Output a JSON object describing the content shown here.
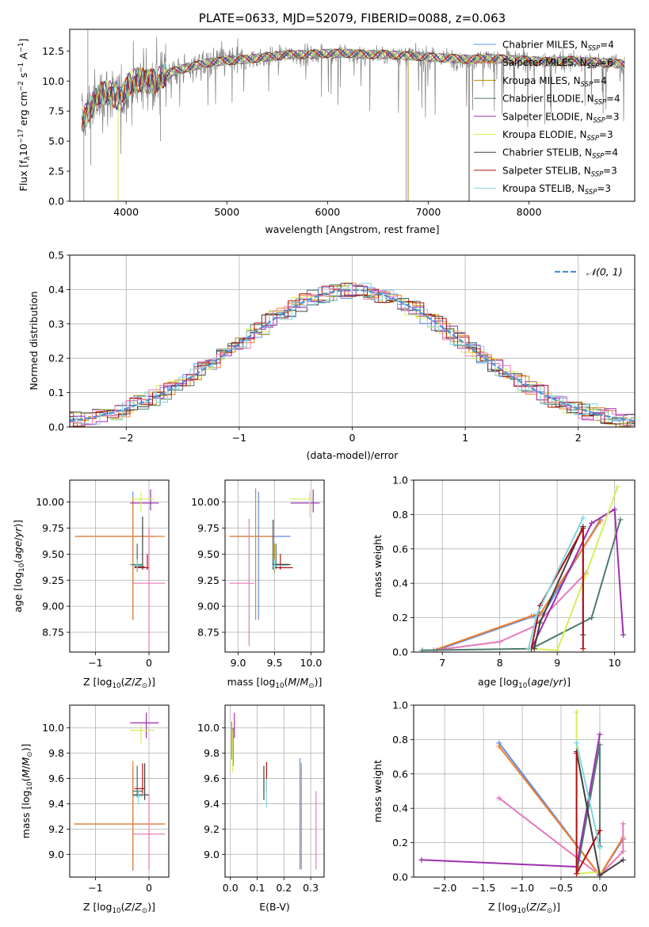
{
  "colors": {
    "Chabrier MILES": "#5b8def",
    "Salpeter MILES": "#f07f2a",
    "Kroupa MILES": "#b88b00",
    "Chabrier ELODIE": "#4e7a6f",
    "Salpeter ELODIE": "#9b2fae",
    "Kroupa ELODIE": "#d6ee5a",
    "Chabrier STELIB": "#404040",
    "Salpeter STELIB": "#b01010",
    "Kroupa STELIB": "#7fd6df",
    "pink": "#e879b8",
    "data": "#808080"
  },
  "chart_data": [
    {
      "id": "spectrum",
      "type": "line",
      "title": "PLATE=0633, MJD=52079, FIBERID=0088, z=0.063",
      "xlabel": "wavelength [Angstrom, rest frame]",
      "ylabel_parts": [
        "Flux [f",
        "λ",
        "10",
        "−17",
        " erg cm",
        "−2",
        " s",
        "−1",
        " A",
        "−1",
        "]"
      ],
      "xlim": [
        3440,
        9050
      ],
      "ylim": [
        0,
        14.3
      ],
      "xticks": [
        4000,
        5000,
        6000,
        7000,
        8000
      ],
      "yticks": [
        0.0,
        2.5,
        5.0,
        7.5,
        10.0,
        12.5
      ],
      "ytick_labels": [
        "0.0",
        "2.5",
        "5.0",
        "7.5",
        "10.0",
        "12.5"
      ],
      "continuum": [
        [
          3550,
          6.5
        ],
        [
          3650,
          8.0
        ],
        [
          3750,
          8.8
        ],
        [
          3850,
          9.0
        ],
        [
          3950,
          8.6
        ],
        [
          4050,
          9.8
        ],
        [
          4150,
          10.2
        ],
        [
          4300,
          9.9
        ],
        [
          4400,
          10.6
        ],
        [
          4600,
          11.1
        ],
        [
          4800,
          11.5
        ],
        [
          5000,
          11.7
        ],
        [
          5200,
          11.8
        ],
        [
          5400,
          12.0
        ],
        [
          5600,
          12.2
        ],
        [
          5800,
          12.2
        ],
        [
          6000,
          12.3
        ],
        [
          6200,
          12.3
        ],
        [
          6400,
          12.2
        ],
        [
          6600,
          12.2
        ],
        [
          6800,
          12.1
        ],
        [
          7000,
          12.0
        ],
        [
          7200,
          11.9
        ],
        [
          7400,
          11.8
        ],
        [
          7600,
          11.9
        ],
        [
          7800,
          11.8
        ],
        [
          8000,
          11.7
        ],
        [
          8200,
          11.6
        ],
        [
          8400,
          11.7
        ],
        [
          8600,
          11.6
        ],
        [
          8800,
          11.5
        ],
        [
          8950,
          11.4
        ]
      ],
      "series": [
        {
          "label": "Chabrier MILES",
          "sub": "SSP",
          "n": "4"
        },
        {
          "label": "Salpeter MILES",
          "sub": "SSP",
          "n": "6"
        },
        {
          "label": "Kroupa MILES",
          "sub": "SSP",
          "n": "4"
        },
        {
          "label": "Chabrier ELODIE",
          "sub": "SSP",
          "n": "4"
        },
        {
          "label": "Salpeter ELODIE",
          "sub": "SSP",
          "n": "3"
        },
        {
          "label": "Kroupa ELODIE",
          "sub": "SSP",
          "n": "3"
        },
        {
          "label": "Chabrier STELIB",
          "sub": "SSP",
          "n": "4"
        },
        {
          "label": "Salpeter STELIB",
          "sub": "SSP",
          "n": "3"
        },
        {
          "label": "Kroupa STELIB",
          "sub": "SSP",
          "n": "3"
        }
      ]
    },
    {
      "id": "residuals",
      "type": "line",
      "xlabel": "(data-model)/error",
      "ylabel": "Normed distribution",
      "xlim": [
        -2.5,
        2.5
      ],
      "ylim": [
        0,
        0.5
      ],
      "xticks": [
        -2,
        -1,
        0,
        1,
        2
      ],
      "xtick_labels": [
        "−2",
        "−1",
        "0",
        "1",
        "2"
      ],
      "yticks": [
        0.0,
        0.1,
        0.2,
        0.3,
        0.4,
        0.5
      ],
      "ytick_labels": [
        "0.0",
        "0.1",
        "0.2",
        "0.3",
        "0.4",
        "0.5"
      ],
      "grid": true,
      "legend": "top-right",
      "normal_label": "𝒩(0, 1)"
    },
    {
      "id": "age-vs-Z",
      "type": "scatter",
      "xlabel": "Z [log10(Z/Z⊙)]",
      "ylabel": "age [log10(age/yr)]",
      "xlim": [
        -1.48,
        0.37
      ],
      "ylim": [
        8.56,
        10.21
      ],
      "xticks": [
        -1,
        0
      ],
      "xtick_labels": [
        "−1",
        "0"
      ],
      "yticks": [
        8.75,
        9.0,
        9.25,
        9.5,
        9.75,
        10.0
      ],
      "ytick_labels": [
        "8.75",
        "9.00",
        "9.25",
        "9.50",
        "9.75",
        "10.00"
      ],
      "points": [
        {
          "s": "Chabrier MILES",
          "x": -0.3,
          "xl": -1.38,
          "xh": 0.15,
          "y": 9.67,
          "yl": 8.87,
          "yh": 10.1
        },
        {
          "s": "Salpeter MILES",
          "x": -0.3,
          "xl": -1.38,
          "xh": 0.3,
          "y": 9.67,
          "yl": 8.87,
          "yh": 10.04
        },
        {
          "s": "Kroupa MILES",
          "x": -0.22,
          "xl": -0.32,
          "xh": -0.12,
          "y": 9.4,
          "yl": 9.33,
          "yh": 9.6
        },
        {
          "s": "Chabrier ELODIE",
          "x": -0.22,
          "xl": -0.35,
          "xh": -0.12,
          "y": 9.4,
          "yl": 9.36,
          "yh": 9.6
        },
        {
          "s": "Salpeter ELODIE",
          "x": 0.03,
          "xl": -0.35,
          "xh": 0.18,
          "y": 9.99,
          "yl": 9.92,
          "yh": 10.12
        },
        {
          "s": "Kroupa ELODIE",
          "x": -0.15,
          "xl": -0.32,
          "xh": 0.1,
          "y": 10.03,
          "yl": 9.9,
          "yh": 10.1
        },
        {
          "s": "Chabrier STELIB",
          "x": -0.12,
          "xl": -0.27,
          "xh": -0.08,
          "y": 9.38,
          "yl": 9.35,
          "yh": 9.86
        },
        {
          "s": "Salpeter STELIB",
          "x": -0.03,
          "xl": -0.27,
          "xh": 0.0,
          "y": 9.37,
          "yl": 9.35,
          "yh": 9.5
        },
        {
          "s": "Kroupa STELIB",
          "x": -0.22,
          "xl": -0.3,
          "xh": -0.12,
          "y": 9.39,
          "yl": 9.35,
          "yh": 9.45
        },
        {
          "s": "pink",
          "x": 0.0,
          "xl": -0.3,
          "xh": 0.3,
          "y": 9.22,
          "yl": 8.56,
          "yh": 9.75
        }
      ]
    },
    {
      "id": "age-vs-mass",
      "type": "scatter",
      "xlabel": "mass [log10(M/M⊙)]",
      "xlim": [
        8.82,
        10.18
      ],
      "ylim": [
        8.56,
        10.21
      ],
      "xticks": [
        9.0,
        9.5,
        10.0
      ],
      "xtick_labels": [
        "9.0",
        "9.5",
        "10.0"
      ],
      "yticks": [
        8.75,
        9.0,
        9.25,
        9.5,
        9.75,
        10.0
      ],
      "ytick_labels": [
        "8.75",
        "9.00",
        "9.25",
        "9.50",
        "9.75",
        "10.00"
      ],
      "points": [
        {
          "s": "Chabrier MILES",
          "x": 9.28,
          "xl": 8.88,
          "xh": 9.72,
          "y": 9.67,
          "yl": 8.87,
          "yh": 10.1
        },
        {
          "s": "Salpeter MILES",
          "x": 9.24,
          "xl": 8.88,
          "xh": 9.5,
          "y": 9.67,
          "yl": 8.87,
          "yh": 10.13
        },
        {
          "s": "Kroupa MILES",
          "x": 9.5,
          "xl": 9.47,
          "xh": 9.7,
          "y": 9.4,
          "yl": 9.33,
          "yh": 9.6
        },
        {
          "s": "Chabrier ELODIE",
          "x": 9.52,
          "xl": 9.47,
          "xh": 9.7,
          "y": 9.4,
          "yl": 9.36,
          "yh": 9.6
        },
        {
          "s": "Salpeter ELODIE",
          "x": 10.03,
          "xl": 9.72,
          "xh": 10.12,
          "y": 9.99,
          "yl": 9.9,
          "yh": 10.12
        },
        {
          "s": "Kroupa ELODIE",
          "x": 9.98,
          "xl": 9.7,
          "xh": 10.02,
          "y": 10.03,
          "yl": 9.85,
          "yh": 10.1
        },
        {
          "s": "Chabrier STELIB",
          "x": 9.48,
          "xl": 9.47,
          "xh": 9.72,
          "y": 9.4,
          "yl": 9.35,
          "yh": 9.83
        },
        {
          "s": "Salpeter STELIB",
          "x": 9.58,
          "xl": 9.5,
          "xh": 9.75,
          "y": 9.37,
          "yl": 9.35,
          "yh": 9.5
        },
        {
          "s": "Kroupa STELIB",
          "x": 9.5,
          "xl": 9.47,
          "xh": 9.68,
          "y": 9.39,
          "yl": 9.35,
          "yh": 9.45
        },
        {
          "s": "pink",
          "x": 9.15,
          "xl": 8.88,
          "xh": 9.22,
          "y": 9.22,
          "yl": 8.62,
          "yh": 9.84
        }
      ]
    },
    {
      "id": "weight-vs-age",
      "type": "line",
      "xlabel": "age [log10(age/yr)]",
      "ylabel": "mass weight",
      "xlim": [
        6.5,
        10.35
      ],
      "ylim": [
        0,
        1.0
      ],
      "xticks": [
        7,
        8,
        9,
        10
      ],
      "xtick_labels": [
        "7",
        "8",
        "9",
        "10"
      ],
      "yticks": [
        0.0,
        0.2,
        0.4,
        0.6,
        0.8,
        1.0
      ],
      "ytick_labels": [
        "0.0",
        "0.2",
        "0.4",
        "0.6",
        "0.8",
        "1.0"
      ],
      "grid": true,
      "series": [
        {
          "s": "Chabrier MILES",
          "x": [
            6.9,
            8.6,
            8.75,
            9.75
          ],
          "y": [
            0.01,
            0.21,
            0.22,
            0.77
          ]
        },
        {
          "s": "Salpeter MILES",
          "x": [
            6.85,
            8.55,
            8.7,
            9.75
          ],
          "y": [
            0.01,
            0.21,
            0.22,
            0.76
          ]
        },
        {
          "s": "pink",
          "x": [
            6.85,
            8.0,
            8.6,
            9.5
          ],
          "y": [
            0.01,
            0.06,
            0.15,
            0.46
          ]
        },
        {
          "s": "Chabrier ELODIE",
          "x": [
            6.65,
            8.55,
            9.6,
            10.1
          ],
          "y": [
            0.01,
            0.02,
            0.2,
            0.77
          ]
        },
        {
          "s": "Salpeter ELODIE",
          "x": [
            8.55,
            9.6,
            10.0,
            10.15
          ],
          "y": [
            0.02,
            0.75,
            0.83,
            0.1
          ]
        },
        {
          "s": "Kroupa ELODIE",
          "x": [
            8.55,
            9.0,
            9.5,
            10.05
          ],
          "y": [
            0.02,
            0.01,
            0.45,
            0.96
          ]
        },
        {
          "s": "Chabrier STELIB",
          "x": [
            8.6,
            8.7,
            9.45,
            9.45
          ],
          "y": [
            0.02,
            0.17,
            0.73,
            0.1
          ]
        },
        {
          "s": "Salpeter STELIB",
          "x": [
            8.55,
            8.7,
            9.45,
            9.45
          ],
          "y": [
            0.02,
            0.27,
            0.72,
            0.02
          ]
        },
        {
          "s": "Kroupa STELIB",
          "x": [
            8.5,
            8.65,
            9.45
          ],
          "y": [
            0.02,
            0.22,
            0.78
          ]
        }
      ]
    },
    {
      "id": "mass-vs-Z",
      "type": "scatter",
      "xlabel": "Z [log10(Z/Z⊙)]",
      "ylabel": "mass [log10(M/M⊙)]",
      "xlim": [
        -1.48,
        0.37
      ],
      "ylim": [
        8.82,
        10.18
      ],
      "xticks": [
        -1,
        0
      ],
      "xtick_labels": [
        "−1",
        "0"
      ],
      "yticks": [
        9.0,
        9.2,
        9.4,
        9.6,
        9.8,
        10.0
      ],
      "ytick_labels": [
        "9.0",
        "9.2",
        "9.4",
        "9.6",
        "9.8",
        "10.0"
      ],
      "points": [
        {
          "s": "Chabrier MILES",
          "x": -0.3,
          "xl": -1.4,
          "xh": 0.3,
          "y": 9.24,
          "yl": 8.87,
          "yh": 9.7
        },
        {
          "s": "Salpeter MILES",
          "x": -0.3,
          "xl": -1.4,
          "xh": 0.3,
          "y": 9.24,
          "yl": 8.88,
          "yh": 9.74
        },
        {
          "s": "Kroupa MILES",
          "x": -0.22,
          "xl": -0.3,
          "xh": -0.12,
          "y": 9.5,
          "yl": 9.45,
          "yh": 9.7
        },
        {
          "s": "Chabrier ELODIE",
          "x": -0.22,
          "xl": -0.3,
          "xh": -0.12,
          "y": 9.5,
          "yl": 9.45,
          "yh": 9.7
        },
        {
          "s": "Salpeter ELODIE",
          "x": -0.05,
          "xl": -0.35,
          "xh": 0.18,
          "y": 10.04,
          "yl": 9.92,
          "yh": 10.12
        },
        {
          "s": "Kroupa ELODIE",
          "x": -0.15,
          "xl": -0.35,
          "xh": 0.1,
          "y": 9.98,
          "yl": 9.88,
          "yh": 10.02
        },
        {
          "s": "Chabrier STELIB",
          "x": -0.08,
          "xl": -0.3,
          "xh": 0.0,
          "y": 9.47,
          "yl": 9.43,
          "yh": 9.72
        },
        {
          "s": "Salpeter STELIB",
          "x": -0.12,
          "xl": -0.27,
          "xh": -0.08,
          "y": 9.52,
          "yl": 9.48,
          "yh": 9.72
        },
        {
          "s": "Kroupa STELIB",
          "x": -0.2,
          "xl": -0.3,
          "xh": -0.12,
          "y": 9.46,
          "yl": 9.4,
          "yh": 9.5
        },
        {
          "s": "pink",
          "x": 0.0,
          "xl": -0.3,
          "xh": 0.3,
          "y": 9.16,
          "yl": 8.88,
          "yh": 9.48
        }
      ]
    },
    {
      "id": "mass-vs-ebv",
      "type": "scatter",
      "xlabel": "E(B-V)",
      "xlim": [
        -0.02,
        0.35
      ],
      "ylim": [
        8.82,
        10.18
      ],
      "xticks": [
        0.0,
        0.1,
        0.2,
        0.3
      ],
      "xtick_labels": [
        "0.0",
        "0.1",
        "0.2",
        "0.3"
      ],
      "yticks": [
        9.0,
        9.2,
        9.4,
        9.6,
        9.8,
        10.0
      ],
      "ytick_labels": [
        "9.0",
        "9.2",
        "9.4",
        "9.6",
        "9.8",
        "10.0"
      ],
      "points": [
        {
          "s": "Chabrier MILES",
          "x": 0.26,
          "y": 9.32,
          "yl": 8.88,
          "yh": 9.76
        },
        {
          "s": "Salpeter MILES",
          "x": 0.265,
          "y": 9.3,
          "yl": 8.88,
          "yh": 9.72
        },
        {
          "s": "Kroupa MILES",
          "x": 0.005,
          "y": 9.9,
          "yl": 9.75,
          "yh": 10.05
        },
        {
          "s": "Chabrier ELODIE",
          "x": 0.01,
          "y": 9.85,
          "yl": 9.7,
          "yh": 10.0
        },
        {
          "s": "Salpeter ELODIE",
          "x": 0.015,
          "y": 10.03,
          "yl": 9.92,
          "yh": 10.12
        },
        {
          "s": "Kroupa ELODIE",
          "x": 0.008,
          "y": 9.85,
          "yl": 9.65,
          "yh": 9.98
        },
        {
          "s": "Chabrier STELIB",
          "x": 0.125,
          "y": 9.55,
          "yl": 9.43,
          "yh": 9.7
        },
        {
          "s": "Salpeter STELIB",
          "x": 0.135,
          "y": 9.6,
          "yl": 9.5,
          "yh": 9.73
        },
        {
          "s": "Kroupa STELIB",
          "x": 0.135,
          "y": 9.48,
          "yl": 9.37,
          "yh": 9.6
        },
        {
          "s": "pink",
          "x": 0.32,
          "y": 9.2,
          "yl": 8.88,
          "yh": 9.5
        }
      ]
    },
    {
      "id": "weight-vs-Z",
      "type": "line",
      "xlabel": "Z [log10(Z/Z⊙)]",
      "ylabel": "mass weight",
      "xlim": [
        -2.4,
        0.45
      ],
      "ylim": [
        0,
        1.0
      ],
      "xticks": [
        -2.0,
        -1.5,
        -1.0,
        -0.5,
        0.0
      ],
      "xtick_labels": [
        "−2.0",
        "−1.5",
        "−1.0",
        "−0.5",
        "0.0"
      ],
      "yticks": [
        0.0,
        0.2,
        0.4,
        0.6,
        0.8,
        1.0
      ],
      "ytick_labels": [
        "0.0",
        "0.2",
        "0.4",
        "0.6",
        "0.8",
        "1.0"
      ],
      "grid": true,
      "series": [
        {
          "s": "Chabrier MILES",
          "x": [
            -1.3,
            0.0,
            0.3
          ],
          "y": [
            0.78,
            0.01,
            0.22
          ]
        },
        {
          "s": "Salpeter MILES",
          "x": [
            -1.3,
            0.0,
            0.3
          ],
          "y": [
            0.76,
            0.01,
            0.23
          ]
        },
        {
          "s": "pink",
          "x": [
            -1.3,
            0.0,
            0.3,
            0.3
          ],
          "y": [
            0.46,
            0.01,
            0.15,
            0.31
          ]
        },
        {
          "s": "Chabrier ELODIE",
          "x": [
            -0.3,
            0.0,
            0.0
          ],
          "y": [
            0.02,
            0.77,
            0.18
          ]
        },
        {
          "s": "Salpeter ELODIE",
          "x": [
            -2.3,
            -0.3,
            0.0
          ],
          "y": [
            0.1,
            0.06,
            0.83
          ]
        },
        {
          "s": "Kroupa ELODIE",
          "x": [
            -0.3,
            -0.3,
            0.0
          ],
          "y": [
            0.96,
            0.02,
            0.03
          ]
        },
        {
          "s": "Chabrier STELIB",
          "x": [
            -0.3,
            0.0,
            0.3
          ],
          "y": [
            0.73,
            0.01,
            0.1
          ]
        },
        {
          "s": "Salpeter STELIB",
          "x": [
            -0.3,
            -0.3,
            0.0
          ],
          "y": [
            0.72,
            0.02,
            0.27
          ]
        },
        {
          "s": "Kroupa STELIB",
          "x": [
            -0.3,
            0.0
          ],
          "y": [
            0.78,
            0.17
          ]
        }
      ]
    }
  ]
}
